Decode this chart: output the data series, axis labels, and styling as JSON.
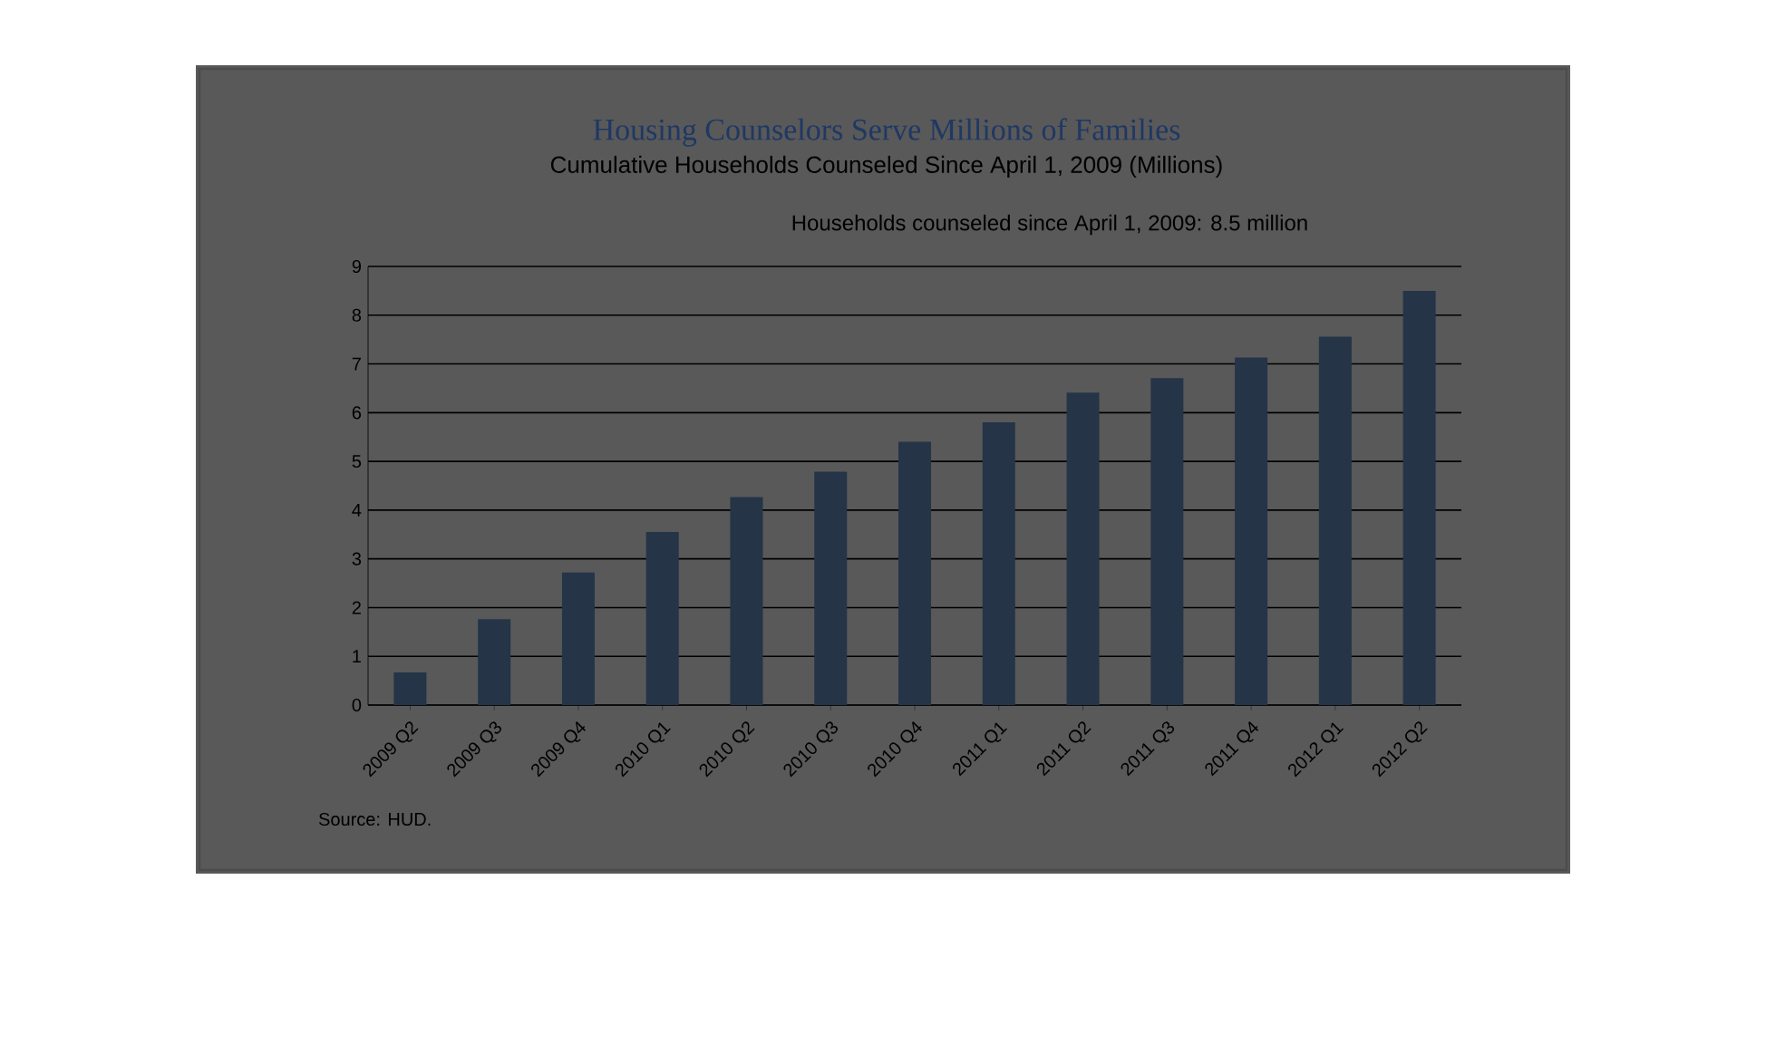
{
  "chart_data": {
    "type": "bar",
    "title": "Housing Counselors Serve Millions of Families",
    "subtitle": "Cumulative Households Counseled Since April 1, 2009 (Millions)",
    "categories": [
      "2009 Q2",
      "2009 Q3",
      "2009 Q4",
      "2010 Q1",
      "2010 Q2",
      "2010 Q3",
      "2010 Q4",
      "2011 Q1",
      "2011 Q2",
      "2011 Q3",
      "2011 Q4",
      "2012 Q1",
      "2012 Q2"
    ],
    "values": [
      0.67,
      1.76,
      2.72,
      3.55,
      4.27,
      4.79,
      5.4,
      5.8,
      6.41,
      6.71,
      7.13,
      7.56,
      8.5
    ],
    "color": "#253447",
    "ylim": [
      0,
      9
    ],
    "yticks": [
      0,
      1,
      2,
      3,
      4,
      5,
      6,
      7,
      8,
      9
    ],
    "grid": "y",
    "annotations": [
      "Households counseled  since  April 1, 2009: 8.5 million",
      "Source:  HUD."
    ]
  }
}
